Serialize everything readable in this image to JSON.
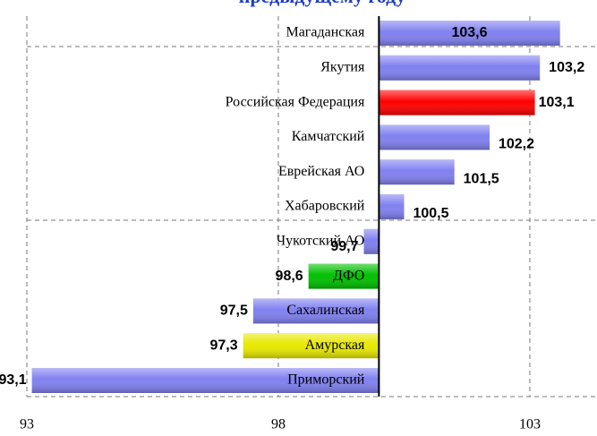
{
  "chart_data": {
    "type": "hbar",
    "title": "предыдущему году",
    "categories": [
      "Магаданская",
      "Якутия",
      "Российская Федерация",
      "Камчатский",
      "Еврейская АО",
      "Хабаровский",
      "Чукотский АО",
      "ДФО",
      "Сахалинская",
      "Амурская",
      "Приморский"
    ],
    "values": [
      103.6,
      103.2,
      103.1,
      102.2,
      101.5,
      100.5,
      99.7,
      98.6,
      97.5,
      97.3,
      93.1
    ],
    "value_labels": [
      "103,6",
      "103,2",
      "103,1",
      "102,2",
      "101,5",
      "100,5",
      "99,7",
      "98,6",
      "97,5",
      "97,3",
      "93,1"
    ],
    "colors": [
      "#8080f0",
      "#8080f0",
      "#ff0000",
      "#8080f0",
      "#8080f0",
      "#8080f0",
      "#8080f0",
      "#00c000",
      "#8080f0",
      "#e8e800",
      "#8080f0"
    ],
    "base": 100,
    "xlim": [
      93,
      104.3
    ],
    "xticks": [
      93,
      98,
      103
    ],
    "grid": true
  }
}
